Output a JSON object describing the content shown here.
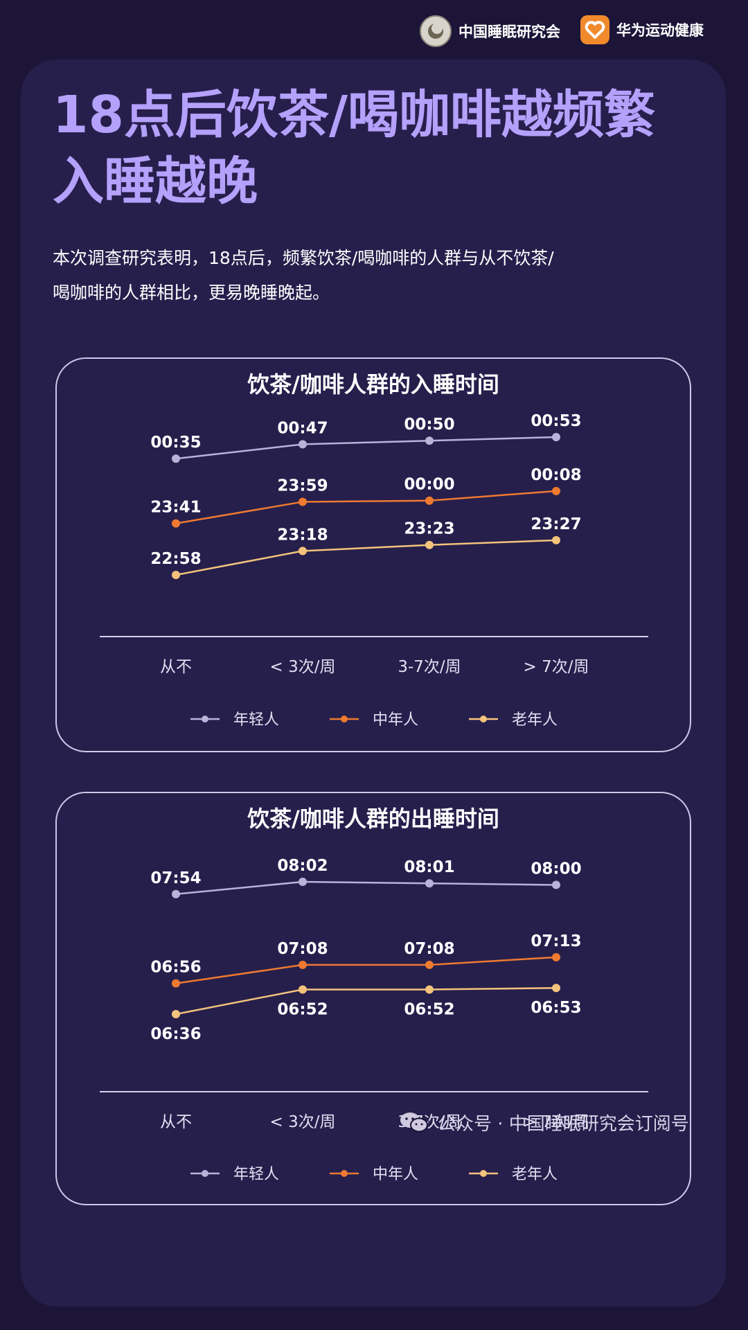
{
  "header": {
    "org_name": "中国睡眠研究会",
    "app_name": "华为运动健康",
    "org_logo_icon": "sleep-research-logo-icon",
    "app_logo_icon": "huawei-health-logo-icon"
  },
  "title_lines": [
    "18点后饮茶/喝咖啡越频繁",
    "入睡越晚"
  ],
  "description_lines": [
    "本次调查研究表明，18点后，频繁饮茶/喝咖啡的人群与从不饮茶/",
    "喝咖啡的人群相比，更易晚睡晚起。"
  ],
  "colors": {
    "background": "#1d1538",
    "card": "#261f4c",
    "title": "#b4a1fb",
    "young": "#b9b3d9",
    "middle": "#ef7a30",
    "elderly": "#f4c37c"
  },
  "chart_data": [
    {
      "type": "line",
      "title": "饮茶/咖啡人群的入睡时间",
      "categories": [
        "从不",
        "< 3次/周",
        "3-7次/周",
        "> 7次/周"
      ],
      "series": [
        {
          "name": "年轻人",
          "values": [
            "00:35",
            "00:47",
            "00:50",
            "00:53"
          ]
        },
        {
          "name": "中年人",
          "values": [
            "23:41",
            "23:59",
            "00:00",
            "00:08"
          ]
        },
        {
          "name": "老年人",
          "values": [
            "22:58",
            "23:18",
            "23:23",
            "23:27"
          ]
        }
      ],
      "legend_position": "bottom",
      "grid": false
    },
    {
      "type": "line",
      "title": "饮茶/咖啡人群的出睡时间",
      "categories": [
        "从不",
        "< 3次/周",
        "3-7次/周",
        "> 7次/周"
      ],
      "series": [
        {
          "name": "年轻人",
          "values": [
            "07:54",
            "08:02",
            "08:01",
            "08:00"
          ]
        },
        {
          "name": "中年人",
          "values": [
            "06:56",
            "07:08",
            "07:08",
            "07:13"
          ]
        },
        {
          "name": "老年人",
          "values": [
            "06:36",
            "06:52",
            "06:52",
            "06:53"
          ]
        }
      ],
      "legend_position": "bottom",
      "grid": false
    }
  ],
  "footer": {
    "text": "公众号 · 中国睡眠研究会订阅号",
    "icon": "wechat-icon"
  }
}
